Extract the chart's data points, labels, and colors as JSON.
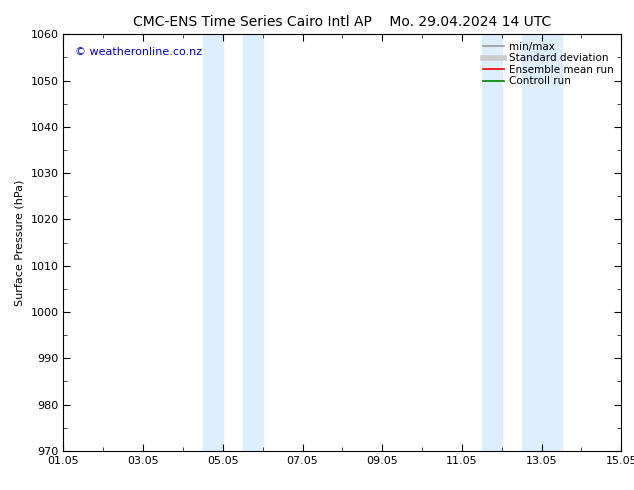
{
  "title_left": "CMC-ENS Time Series Cairo Intl AP",
  "title_right": "Mo. 29.04.2024 14 UTC",
  "ylabel": "Surface Pressure (hPa)",
  "ylim": [
    970,
    1060
  ],
  "yticks": [
    970,
    980,
    990,
    1000,
    1010,
    1020,
    1030,
    1040,
    1050,
    1060
  ],
  "xlim_start": 0,
  "xlim_end": 14,
  "xtick_positions": [
    0,
    2,
    4,
    6,
    8,
    10,
    12,
    14
  ],
  "xtick_labels": [
    "01.05",
    "03.05",
    "05.05",
    "07.05",
    "09.05",
    "11.05",
    "13.05",
    "15.05"
  ],
  "shaded_bands": [
    {
      "xmin": 3.5,
      "xmax": 4.0
    },
    {
      "xmin": 4.5,
      "xmax": 5.0
    },
    {
      "xmin": 10.5,
      "xmax": 11.0
    },
    {
      "xmin": 11.5,
      "xmax": 12.5
    }
  ],
  "shade_color": "#ddeeff",
  "watermark": "© weatheronline.co.nz",
  "watermark_color": "#0000cc",
  "bg_color": "#ffffff",
  "legend_items": [
    {
      "label": "min/max",
      "color": "#999999",
      "lw": 1.2,
      "style": "-"
    },
    {
      "label": "Standard deviation",
      "color": "#cccccc",
      "lw": 4,
      "style": "-"
    },
    {
      "label": "Ensemble mean run",
      "color": "#ff0000",
      "lw": 1.2,
      "style": "-"
    },
    {
      "label": "Controll run",
      "color": "#008000",
      "lw": 1.2,
      "style": "-"
    }
  ],
  "title_fontsize": 10,
  "axis_label_fontsize": 8,
  "tick_fontsize": 8,
  "watermark_fontsize": 8,
  "legend_fontsize": 7.5
}
